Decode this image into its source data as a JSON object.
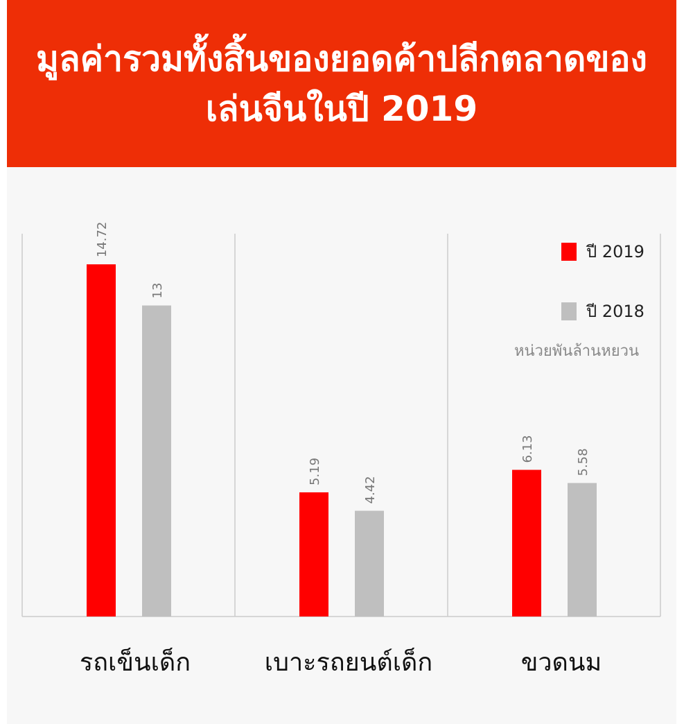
{
  "header": {
    "title_line1": "มูลค่ารวมทั้งสิ้นของยอดค้าปลีกตลาดของ",
    "title_line2": "เล่นจีนในปี 2019"
  },
  "legend": {
    "unit_label": "หน่วยพันล้านหยวน"
  },
  "colors": {
    "header_bg": "#ee2e06",
    "panel_bg": "#f7f7f7",
    "series_2019": "#ff0000",
    "series_2018": "#bfbfbf",
    "divider": "#cccccc",
    "value_label": "#777777"
  },
  "chart_data": {
    "type": "bar",
    "title": "มูลค่ารวมทั้งสิ้นของยอดค้าปลีกตลาดของเล่นจีนในปี 2019",
    "categories": [
      "รถเข็นเด็ก",
      "เบาะรถยนต์เด็ก",
      "ขวดนม"
    ],
    "series": [
      {
        "name": "ปี 2019",
        "values": [
          14.72,
          5.19,
          6.13
        ],
        "color": "#ff0000"
      },
      {
        "name": "ปี 2018",
        "values": [
          13,
          4.42,
          5.58
        ],
        "color": "#bfbfbf"
      }
    ],
    "value_labels": [
      [
        "14.72",
        "5.19",
        "6.13"
      ],
      [
        "13",
        "4.42",
        "5.58"
      ]
    ],
    "unit": "หน่วยพันล้านหยวน",
    "ylim": [
      0,
      16
    ],
    "grid": false,
    "legend_position": "top-right",
    "xlabel": "",
    "ylabel": ""
  }
}
